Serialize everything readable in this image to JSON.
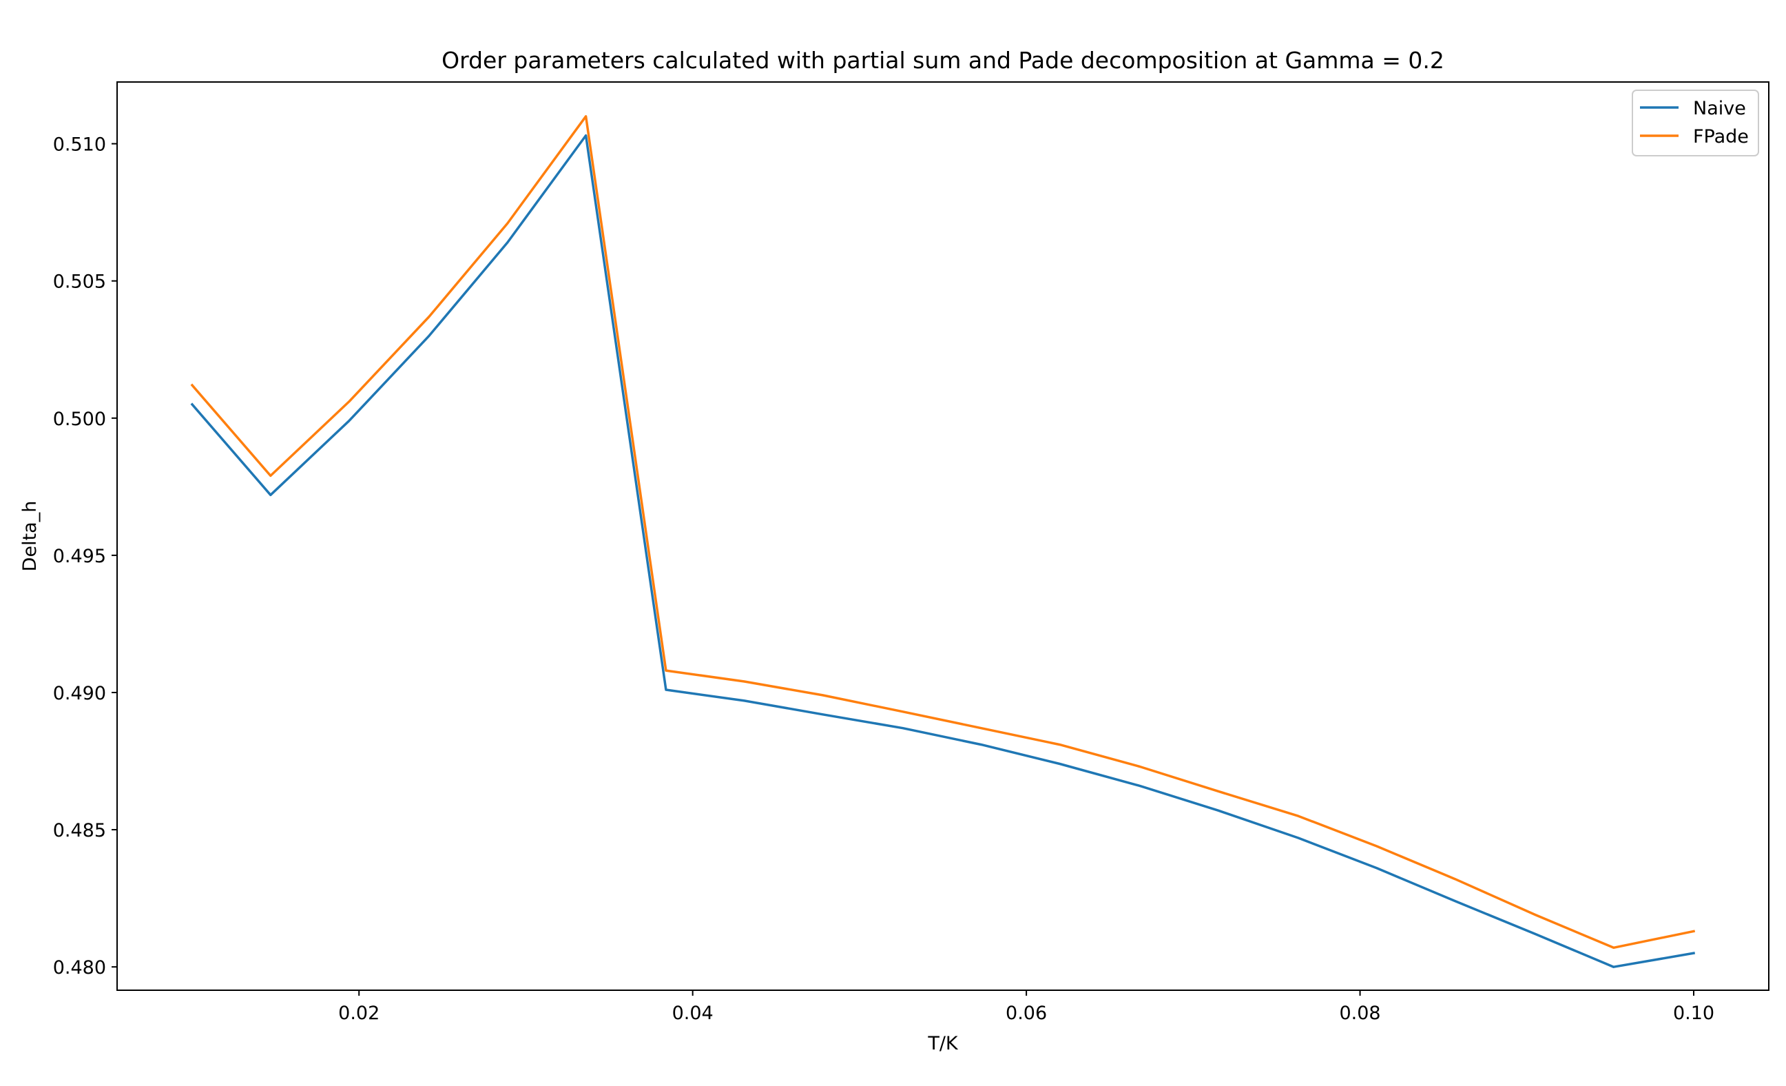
{
  "chart_data": {
    "type": "line",
    "title": "Order parameters calculated with partial sum and Pade decomposition at Gamma = 0.2",
    "xlabel": "T/K",
    "ylabel": "Delta_h",
    "xlim": [
      0.0055,
      0.1045
    ],
    "ylim": [
      0.47915,
      0.51225
    ],
    "xticks": [
      "0.02",
      "0.04",
      "0.06",
      "0.08",
      "0.10"
    ],
    "yticks": [
      "0.480",
      "0.485",
      "0.490",
      "0.495",
      "0.500",
      "0.505",
      "0.510"
    ],
    "grid": false,
    "legend_position": "top-right",
    "x": [
      0.01,
      0.0147,
      0.0194,
      0.0242,
      0.0289,
      0.0336,
      0.0384,
      0.0431,
      0.0478,
      0.0526,
      0.0573,
      0.062,
      0.0668,
      0.0715,
      0.0763,
      0.081,
      0.0857,
      0.0905,
      0.0952,
      0.1
    ],
    "series": [
      {
        "name": "Naive",
        "color": "#1f77b4",
        "values": [
          0.5005,
          0.4972,
          0.4999,
          0.503,
          0.5064,
          0.5103,
          0.4901,
          0.4897,
          0.4892,
          0.4887,
          0.4881,
          0.4874,
          0.4866,
          0.4857,
          0.4847,
          0.4836,
          0.4824,
          0.4812,
          0.48,
          0.4805
        ]
      },
      {
        "name": "FPade",
        "color": "#ff7f0e",
        "values": [
          0.5012,
          0.4979,
          0.5006,
          0.5037,
          0.5071,
          0.511,
          0.4908,
          0.4904,
          0.4899,
          0.4893,
          0.4887,
          0.4881,
          0.4873,
          0.4864,
          0.4855,
          0.4844,
          0.4832,
          0.4819,
          0.4807,
          0.4813
        ]
      }
    ]
  }
}
